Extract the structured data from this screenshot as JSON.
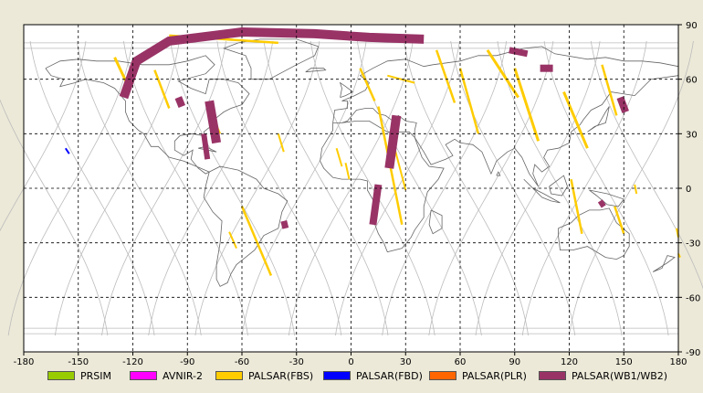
{
  "map": {
    "lon_ticks": [
      "-180",
      "-150",
      "-120",
      "-90",
      "-60",
      "-30",
      "0",
      "30",
      "60",
      "90",
      "120",
      "150",
      "180"
    ],
    "lat_ticks": [
      "90",
      "60",
      "30",
      "0",
      "-30",
      "-60",
      "-90"
    ],
    "lon_range": [
      -180,
      180
    ],
    "lat_range": [
      -90,
      90
    ],
    "grid": true
  },
  "legend": {
    "items": [
      {
        "label": "PRSIM",
        "color": "#99cc00"
      },
      {
        "label": "AVNIR-2",
        "color": "#ff00ff"
      },
      {
        "label": "PALSAR(FBS)",
        "color": "#ffcc00"
      },
      {
        "label": "PALSAR(FBD)",
        "color": "#0000ff"
      },
      {
        "label": "PALSAR(PLR)",
        "color": "#ff6600"
      },
      {
        "label": "PALSAR(WB1/WB2)",
        "color": "#993366"
      }
    ]
  },
  "colors": {
    "background": "#ece9d8",
    "map_bg": "#ffffff",
    "coast": "#666666",
    "orbit": "#bbbbbb",
    "fbs": "#ffcc00",
    "wb": "#993366",
    "fbd": "#0000ff"
  }
}
